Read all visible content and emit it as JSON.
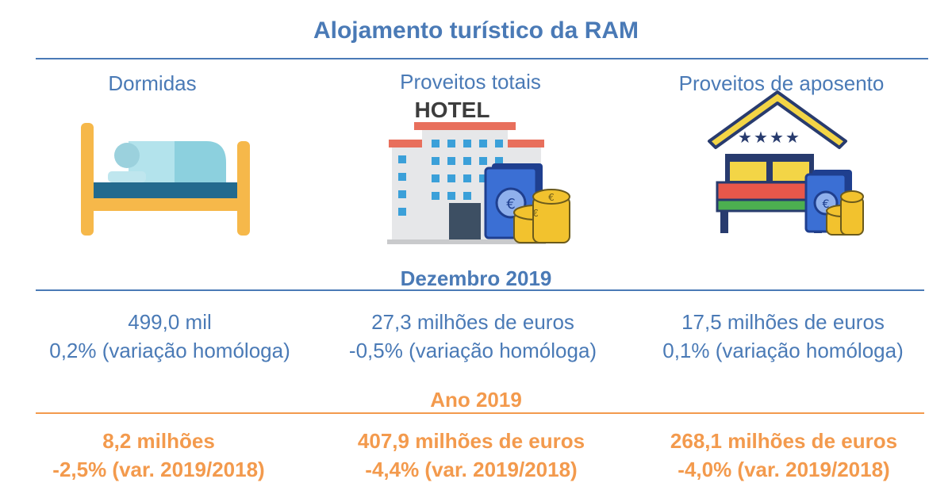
{
  "title": "Alojamento turístico da RAM",
  "columns": [
    {
      "heading": "Dormidas",
      "icon": "bed-icon",
      "month_value": "499,0 mil",
      "month_change": "0,2% (variação homóloga)",
      "year_value": "8,2 milhões",
      "year_change": "-2,5% (var. 2019/2018)"
    },
    {
      "heading": "Proveitos totais",
      "icon": "hotel-money-icon",
      "icon_label": "HOTEL",
      "month_value": "27,3 milhões de euros",
      "month_change": "-0,5% (variação homóloga)",
      "year_value": "407,9 milhões de euros",
      "year_change": "-4,4% (var. 2019/2018)"
    },
    {
      "heading": "Proveitos de aposento",
      "icon": "room-money-icon",
      "month_value": "17,5 milhões de euros",
      "month_change": "0,1% (variação homóloga)",
      "year_value": "268,1 milhões de euros",
      "year_change": "-4,0% (var. 2019/2018)"
    }
  ],
  "section_month": "Dezembro 2019",
  "section_year": "Ano 2019",
  "colors": {
    "blue": "#4a7ab6",
    "orange": "#f39a4d"
  }
}
